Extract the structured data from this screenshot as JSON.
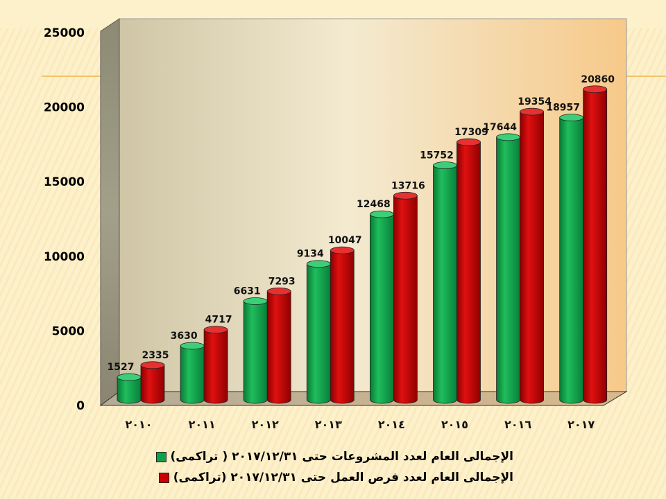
{
  "chart_data": {
    "type": "bar",
    "categories": [
      "٢٠١٠",
      "٢٠١١",
      "٢٠١٢",
      "٢٠١٣",
      "٢٠١٤",
      "٢٠١٥",
      "٢٠١٦",
      "٢٠١٧"
    ],
    "series": [
      {
        "name": "الإجمالى العام لعدد المشروعات حتى  ٢٠١٧/١٢/٣١ ( تراكمى)",
        "color": "#0fa04a",
        "values": [
          1527,
          3630,
          6631,
          9134,
          12468,
          15752,
          17644,
          18957
        ]
      },
      {
        "name": "الإجمالى العام لعدد فرص العمل حتى ٢٠١٧/١٢/٣١ (تراكمى)",
        "color": "#cc0000",
        "values": [
          2335,
          4717,
          7293,
          10047,
          13716,
          17309,
          19354,
          20860
        ]
      }
    ],
    "yticks": [
      "0",
      "5000",
      "10000",
      "15000",
      "20000",
      "25000"
    ],
    "ylim": [
      0,
      25000
    ],
    "legend_position": "bottom",
    "style": "3d-cylinder"
  }
}
